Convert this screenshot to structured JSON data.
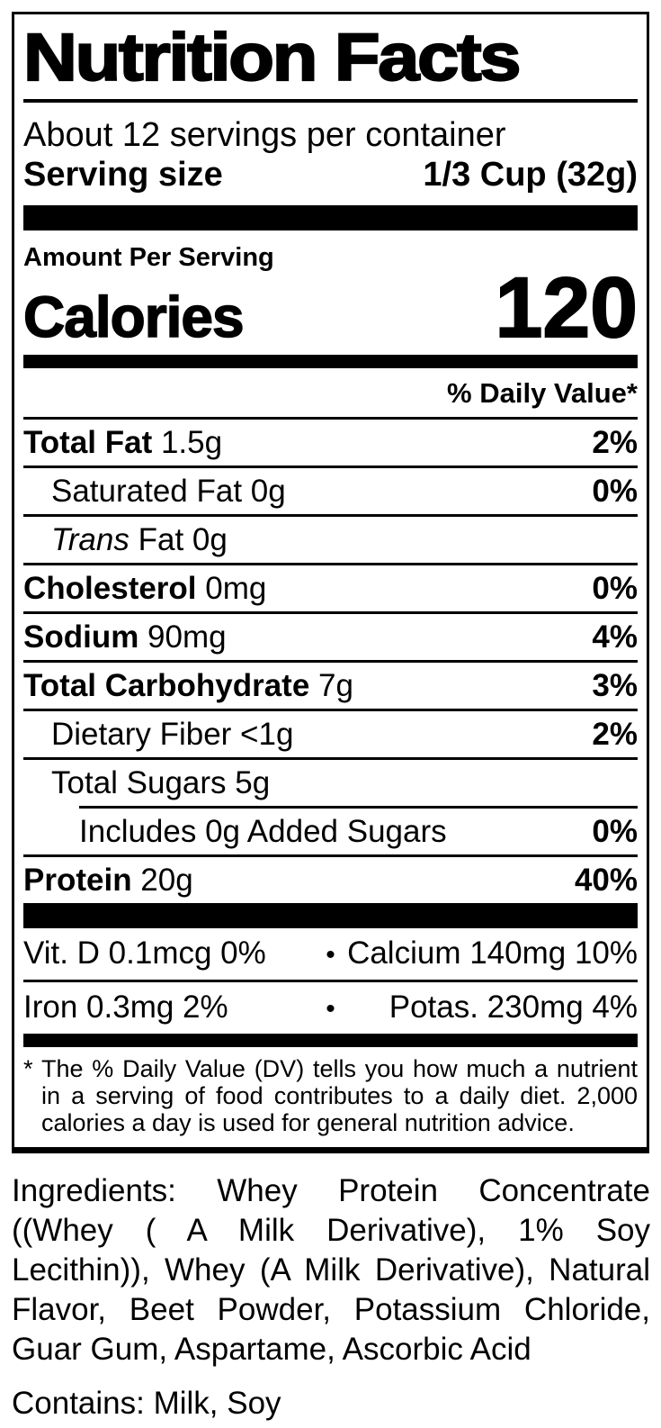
{
  "colors": {
    "text": "#000000",
    "background": "#ffffff"
  },
  "label": {
    "title": "Nutrition Facts",
    "servings_per_container": "About 12 servings per container",
    "serving_size": {
      "label": "Serving size",
      "value": "1/3 Cup (32g)"
    },
    "amount_per_serving": "Amount Per Serving",
    "calories": {
      "label": "Calories",
      "value": "120"
    },
    "daily_value_header": "% Daily Value*",
    "rows": [
      {
        "name": "Total Fat",
        "rest": " 1.5g",
        "dv": "2%"
      },
      {
        "name": "Saturated Fat",
        "rest": " 0g",
        "dv": "0%"
      },
      {
        "name": "Trans",
        "rest": " Fat 0g",
        "dv": ""
      },
      {
        "name": "Cholesterol",
        "rest": " 0mg",
        "dv": "0%"
      },
      {
        "name": "Sodium",
        "rest": " 90mg",
        "dv": "4%"
      },
      {
        "name": "Total Carbohydrate",
        "rest": " 7g",
        "dv": "3%"
      },
      {
        "name": "Dietary Fiber",
        "rest": " <1g",
        "dv": "2%"
      },
      {
        "name": "Total Sugars",
        "rest": " 5g",
        "dv": ""
      },
      {
        "name": "Includes 0g Added Sugars",
        "rest": "",
        "dv": "0%"
      },
      {
        "name": "Protein",
        "rest": " 20g",
        "dv": "40%"
      }
    ],
    "micronutrients": [
      {
        "left": "Vit. D 0.1mcg 0%",
        "separator": "•",
        "right": "Calcium 140mg 10%"
      },
      {
        "left": "Iron 0.3mg 2%",
        "separator": "•",
        "right": "Potas. 230mg 4%"
      }
    ],
    "footnote": {
      "marker": "*",
      "text": "The % Daily Value (DV) tells you how much a nutrient in a serving of food contributes to a daily diet. 2,000 calories a day is used for general nutrition advice."
    }
  },
  "ingredients": "Ingredients: Whey Protein Concentrate ((Whey ( A Milk Derivative), 1% Soy Lecithin)), Whey (A Milk Derivative), Natural Flavor, Beet Powder, Potassium Chloride, Guar Gum, Aspartame, Ascorbic Acid",
  "contains": "Contains: Milk, Soy"
}
